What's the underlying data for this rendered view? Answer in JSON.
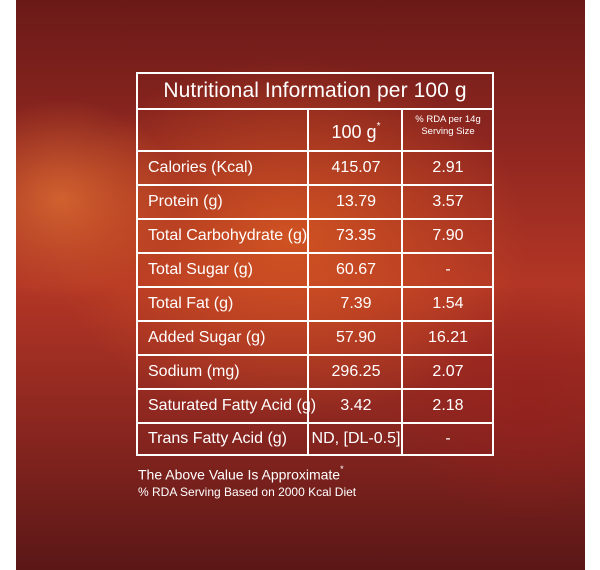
{
  "table": {
    "title": "Nutritional Information per 100 g",
    "header": {
      "per100": "100 g",
      "per100_mark": "*",
      "rda_line1": "% RDA per 14g",
      "rda_line2": "Serving Size"
    },
    "rows": [
      {
        "label": "Calories (Kcal)",
        "value": "415.07",
        "rda": "2.91"
      },
      {
        "label": "Protein (g)",
        "value": "13.79",
        "rda": "3.57"
      },
      {
        "label": "Total Carbohydrate (g)",
        "value": "73.35",
        "rda": "7.90"
      },
      {
        "label": "Total Sugar (g)",
        "value": "60.67",
        "rda": "-"
      },
      {
        "label": "Total Fat (g)",
        "value": "7.39",
        "rda": "1.54"
      },
      {
        "label": "Added Sugar (g)",
        "value": "57.90",
        "rda": "16.21"
      },
      {
        "label": "Sodium (mg)",
        "value": "296.25",
        "rda": "2.07"
      },
      {
        "label": "Saturated Fatty Acid (g)",
        "value": "3.42",
        "rda": "2.18"
      },
      {
        "label": "Trans Fatty Acid (g)",
        "value": "ND, [DL-0.5]",
        "rda": "-"
      }
    ]
  },
  "notes": {
    "line1": "The Above Value Is Approximate",
    "line1_mark": "*",
    "line2": "% RDA Serving Based on 2000 Kcal Diet"
  },
  "colors": {
    "background_dark": "#6b1a18",
    "background_glow": "#d65822",
    "text": "#ffffff"
  }
}
